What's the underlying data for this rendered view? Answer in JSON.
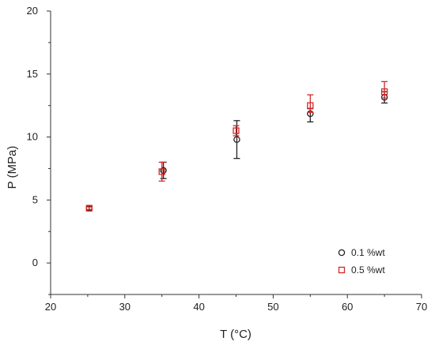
{
  "chart_data": {
    "type": "scatter",
    "xlabel": "T (°C)",
    "ylabel": "P (MPa)",
    "xlim": [
      20,
      70
    ],
    "ylim": [
      -2.5,
      20
    ],
    "x_ticks": [
      20,
      30,
      40,
      50,
      60,
      70
    ],
    "y_ticks": [
      0,
      5,
      10,
      15,
      20
    ],
    "grid": false,
    "legend": "bottom-right",
    "series": [
      {
        "name": "0.1 %wt",
        "marker": "circle",
        "color": "#222222",
        "x": [
          25.2,
          35.2,
          45.1,
          55.0,
          65.0
        ],
        "y": [
          4.35,
          7.35,
          9.8,
          11.85,
          13.15
        ],
        "err_low": [
          0.15,
          0.65,
          1.5,
          0.65,
          0.45
        ],
        "err_high": [
          0.15,
          0.65,
          1.5,
          0.4,
          0.45
        ]
      },
      {
        "name": "0.5 %wt",
        "marker": "square",
        "color": "#d62728",
        "x": [
          25.2,
          35.0,
          45.0,
          55.0,
          65.0
        ],
        "y": [
          4.35,
          7.25,
          10.5,
          12.5,
          13.6
        ],
        "err_low": [
          0.1,
          0.75,
          0.4,
          0.55,
          0.5
        ],
        "err_high": [
          0.1,
          0.75,
          0.4,
          0.85,
          0.8
        ]
      }
    ]
  }
}
